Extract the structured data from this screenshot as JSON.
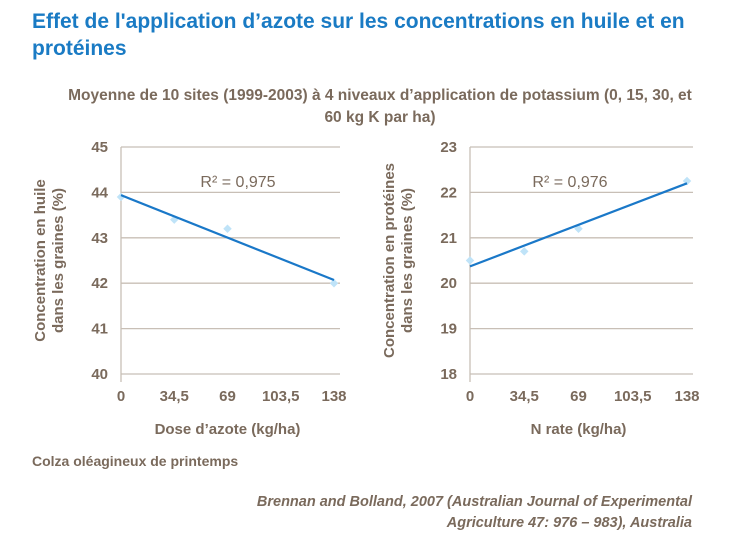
{
  "title": "Effet de l'application d’azote sur les concentrations en huile et en protéines",
  "subtitle": "Moyenne de 10 sites (1999-2003) à 4 niveaux d’application de potassium (0, 15, 30, et 60 kg K par ha)",
  "note": "Colza oléagineux de printemps",
  "source_line1": "Brennan and Bolland, 2007 (Australian Journal of Experimental",
  "source_line2": "Agriculture 47: 976 – 983), Australia",
  "colors": {
    "trend": "#1a78c8",
    "points": "#bfe3f8",
    "grid": "#c8bfb6",
    "text": "#7a6a5c",
    "title": "#1a7bc4"
  },
  "chart_data": [
    {
      "type": "scatter",
      "xlabel": "Dose d’azote (kg/ha)",
      "ylabel": [
        "Concentration en huile",
        "dans les graines (%)"
      ],
      "xticks": [
        "0",
        "34,5",
        "69",
        "103,5",
        "138"
      ],
      "xlim": [
        0,
        138
      ],
      "ylim": [
        40,
        45
      ],
      "yticks": [
        "40",
        "41",
        "42",
        "43",
        "44",
        "45"
      ],
      "x": [
        0,
        34.5,
        69,
        138
      ],
      "y": [
        43.9,
        43.4,
        43.2,
        42.0
      ],
      "trendline": {
        "type": "linear",
        "y_at_xmin": 43.94,
        "y_at_xmax": 42.07
      },
      "annotation": "R² = 0,975",
      "grid": true
    },
    {
      "type": "scatter",
      "xlabel": "N rate (kg/ha)",
      "ylabel": [
        "Concentration en protéines",
        "dans les graines (%)"
      ],
      "xticks": [
        "0",
        "34,5",
        "69",
        "103,5",
        "138"
      ],
      "xlim": [
        0,
        138
      ],
      "ylim": [
        18,
        23
      ],
      "yticks": [
        "18",
        "19",
        "20",
        "21",
        "22",
        "23"
      ],
      "x": [
        0,
        34.5,
        69,
        138
      ],
      "y": [
        20.5,
        20.7,
        21.2,
        22.25
      ],
      "trendline": {
        "type": "linear",
        "y_at_xmin": 20.37,
        "y_at_xmax": 22.2
      },
      "annotation": "R² = 0,976",
      "grid": true
    }
  ]
}
